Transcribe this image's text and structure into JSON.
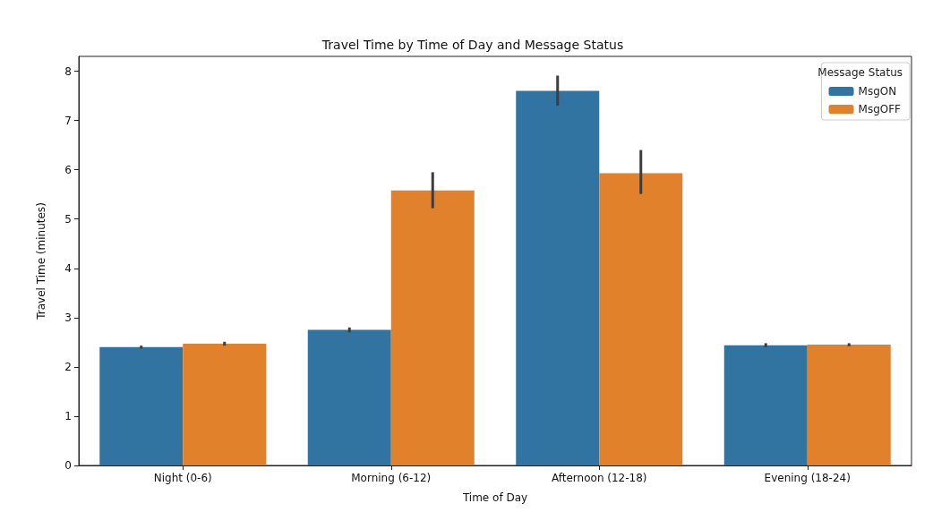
{
  "chart_data": {
    "type": "bar",
    "title": "Travel Time by Time of Day and Message Status",
    "xlabel": "Time of Day",
    "ylabel": "Travel Time (minutes)",
    "legend_title": "Message Status",
    "categories": [
      "Night (0-6)",
      "Morning (6-12)",
      "Afternoon (12-18)",
      "Evening (18-24)"
    ],
    "series": [
      {
        "name": "MsgON",
        "color": "#3274a1",
        "values": [
          2.4,
          2.75,
          7.6,
          2.44
        ],
        "errors": [
          0.03,
          0.05,
          [
            7.3,
            7.91
          ],
          0.04
        ]
      },
      {
        "name": "MsgOFF",
        "color": "#e1812c",
        "values": [
          2.47,
          5.58,
          5.93,
          2.45
        ],
        "errors": [
          0.04,
          [
            5.22,
            5.95
          ],
          [
            5.51,
            6.4
          ],
          0.03
        ]
      }
    ],
    "ylim": [
      0,
      8.3
    ],
    "yticks": [
      0,
      1,
      2,
      3,
      4,
      5,
      6,
      7,
      8
    ],
    "grid": false,
    "legend": "top right"
  }
}
